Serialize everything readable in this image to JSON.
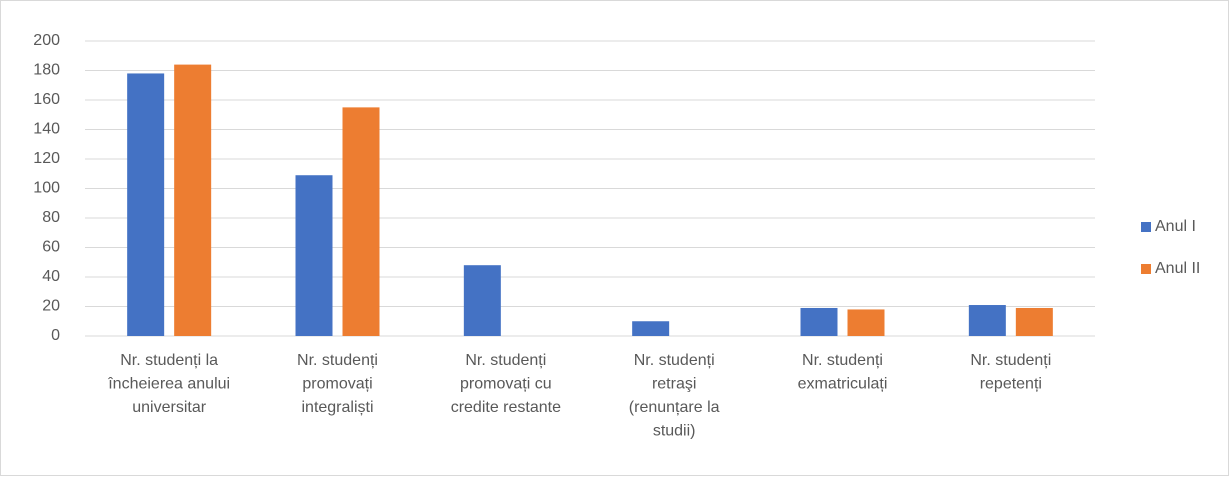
{
  "chart_data": {
    "type": "bar",
    "categories": [
      "Nr. studenți la încheierea anului universitar",
      "Nr. studenți promovați integraliști",
      "Nr. studenți promovați cu credite restante",
      "Nr. studenți retraşi (renunțare la studii)",
      "Nr. studenți exmatriculați",
      "Nr. studenți repetenți"
    ],
    "series": [
      {
        "name": "Anul I",
        "color": "#4472c4",
        "values": [
          178,
          109,
          48,
          10,
          19,
          21
        ]
      },
      {
        "name": "Anul II",
        "color": "#ed7d31",
        "values": [
          184,
          155,
          0,
          0,
          18,
          19
        ]
      }
    ],
    "ylim": [
      0,
      200
    ],
    "yticks": [
      0,
      20,
      40,
      60,
      80,
      100,
      120,
      140,
      160,
      180,
      200
    ],
    "grid": true,
    "legend": "right"
  }
}
